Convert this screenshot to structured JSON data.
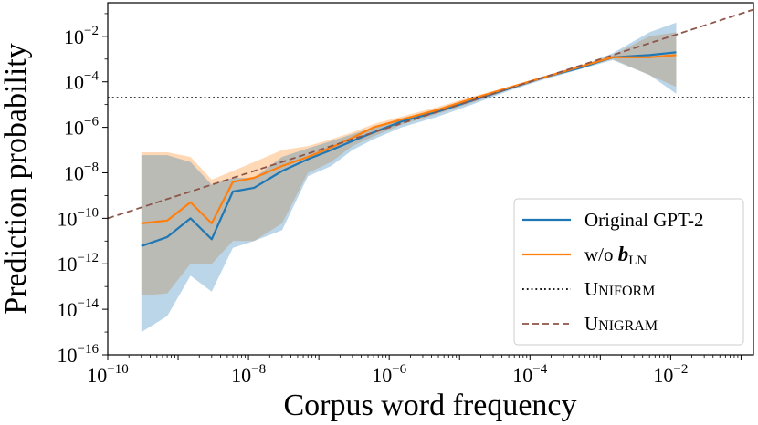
{
  "chart_data": {
    "type": "line",
    "xlabel": "Corpus word frequency",
    "ylabel": "Prediction probability",
    "xscale": "log",
    "yscale": "log",
    "xlim_exp": [
      -10,
      -8.5
    ],
    "xlim": [
      1e-10,
      0.15
    ],
    "ylim": [
      1e-16,
      0.3
    ],
    "x_ticks": [
      {
        "base": "10",
        "exp": "−10",
        "value": 1e-10
      },
      {
        "base": "10",
        "exp": "−8",
        "value": 1e-08
      },
      {
        "base": "10",
        "exp": "−6",
        "value": 1e-06
      },
      {
        "base": "10",
        "exp": "−4",
        "value": 0.0001
      },
      {
        "base": "10",
        "exp": "−2",
        "value": 0.01
      }
    ],
    "y_ticks": [
      {
        "base": "10",
        "exp": "−16",
        "value": 1e-16
      },
      {
        "base": "10",
        "exp": "−14",
        "value": 1e-14
      },
      {
        "base": "10",
        "exp": "−12",
        "value": 1e-12
      },
      {
        "base": "10",
        "exp": "−10",
        "value": 1e-10
      },
      {
        "base": "10",
        "exp": "−8",
        "value": 1e-08
      },
      {
        "base": "10",
        "exp": "−6",
        "value": 1e-06
      },
      {
        "base": "10",
        "exp": "−4",
        "value": 0.0001
      },
      {
        "base": "10",
        "exp": "−2",
        "value": 0.01
      }
    ],
    "grid": false,
    "legend_position": "bottom-right",
    "x": [
      3e-10,
      7e-10,
      1.5e-09,
      3e-09,
      6e-09,
      1.2e-08,
      3e-08,
      7e-08,
      1.5e-07,
      3e-07,
      6e-07,
      1.5e-06,
      5e-06,
      1.5e-05,
      5e-05,
      0.00015,
      0.0005,
      0.0015,
      0.005,
      0.012
    ],
    "series": [
      {
        "name": "Original GPT-2",
        "color": "#1f77b4",
        "values": [
          6e-12,
          1.5e-11,
          1e-10,
          1.2e-11,
          1.5e-09,
          2.2e-09,
          1.2e-08,
          4e-08,
          1e-07,
          2.5e-07,
          6e-07,
          1.8e-06,
          5e-06,
          1.5e-05,
          5e-05,
          0.00015,
          0.0004,
          0.0012,
          0.0015,
          0.002
        ],
        "lower": [
          1e-15,
          5e-15,
          3e-13,
          6e-14,
          5e-12,
          1e-11,
          3e-11,
          7e-09,
          2e-08,
          1e-07,
          3e-07,
          1e-06,
          3e-06,
          1e-05,
          4e-05,
          0.00012,
          0.00035,
          0.0009,
          0.0002,
          3e-05
        ],
        "upper": [
          6e-08,
          6e-08,
          3e-08,
          3e-09,
          6e-09,
          6e-09,
          5e-08,
          1.2e-07,
          2.5e-07,
          5e-07,
          1e-06,
          2.5e-06,
          6e-06,
          1.8e-05,
          5.5e-05,
          0.00016,
          0.00045,
          0.0018,
          0.015,
          0.04
        ]
      },
      {
        "name": "w/o ",
        "name_bold": "b",
        "name_sub": "LN",
        "color": "#ff7f0e",
        "values": [
          6e-11,
          8e-11,
          5e-10,
          6e-11,
          4e-09,
          6e-09,
          2e-08,
          5e-08,
          1.3e-07,
          3.5e-07,
          1e-06,
          2.2e-06,
          6e-06,
          1.8e-05,
          5.5e-05,
          0.00015,
          0.00045,
          0.0012,
          0.0012,
          0.0015
        ],
        "lower": [
          4e-14,
          5e-14,
          1e-12,
          1e-12,
          1e-11,
          1e-11,
          6e-11,
          1e-08,
          3e-08,
          1.5e-07,
          4e-07,
          1.3e-06,
          4e-06,
          1.2e-05,
          4.5e-05,
          0.00013,
          0.0004,
          0.001,
          0.0002,
          6e-05
        ],
        "upper": [
          8e-08,
          8e-08,
          5e-08,
          5e-09,
          1.2e-08,
          3e-08,
          1e-07,
          1.5e-07,
          3e-07,
          6e-07,
          1.4e-06,
          3e-06,
          8e-06,
          2.2e-05,
          6e-05,
          0.00017,
          0.0005,
          0.0015,
          0.01,
          0.015
        ]
      }
    ],
    "reference_lines": [
      {
        "name": "UNIFORM",
        "name_first": "U",
        "name_rest": "NIFORM",
        "style": "dotted",
        "color": "#000000",
        "y": 2e-05
      },
      {
        "name": "UNIGRAM",
        "name_first": "U",
        "name_rest": "NIGRAM",
        "style": "dashed",
        "color": "#8c564b",
        "equation": "y = x"
      }
    ]
  }
}
